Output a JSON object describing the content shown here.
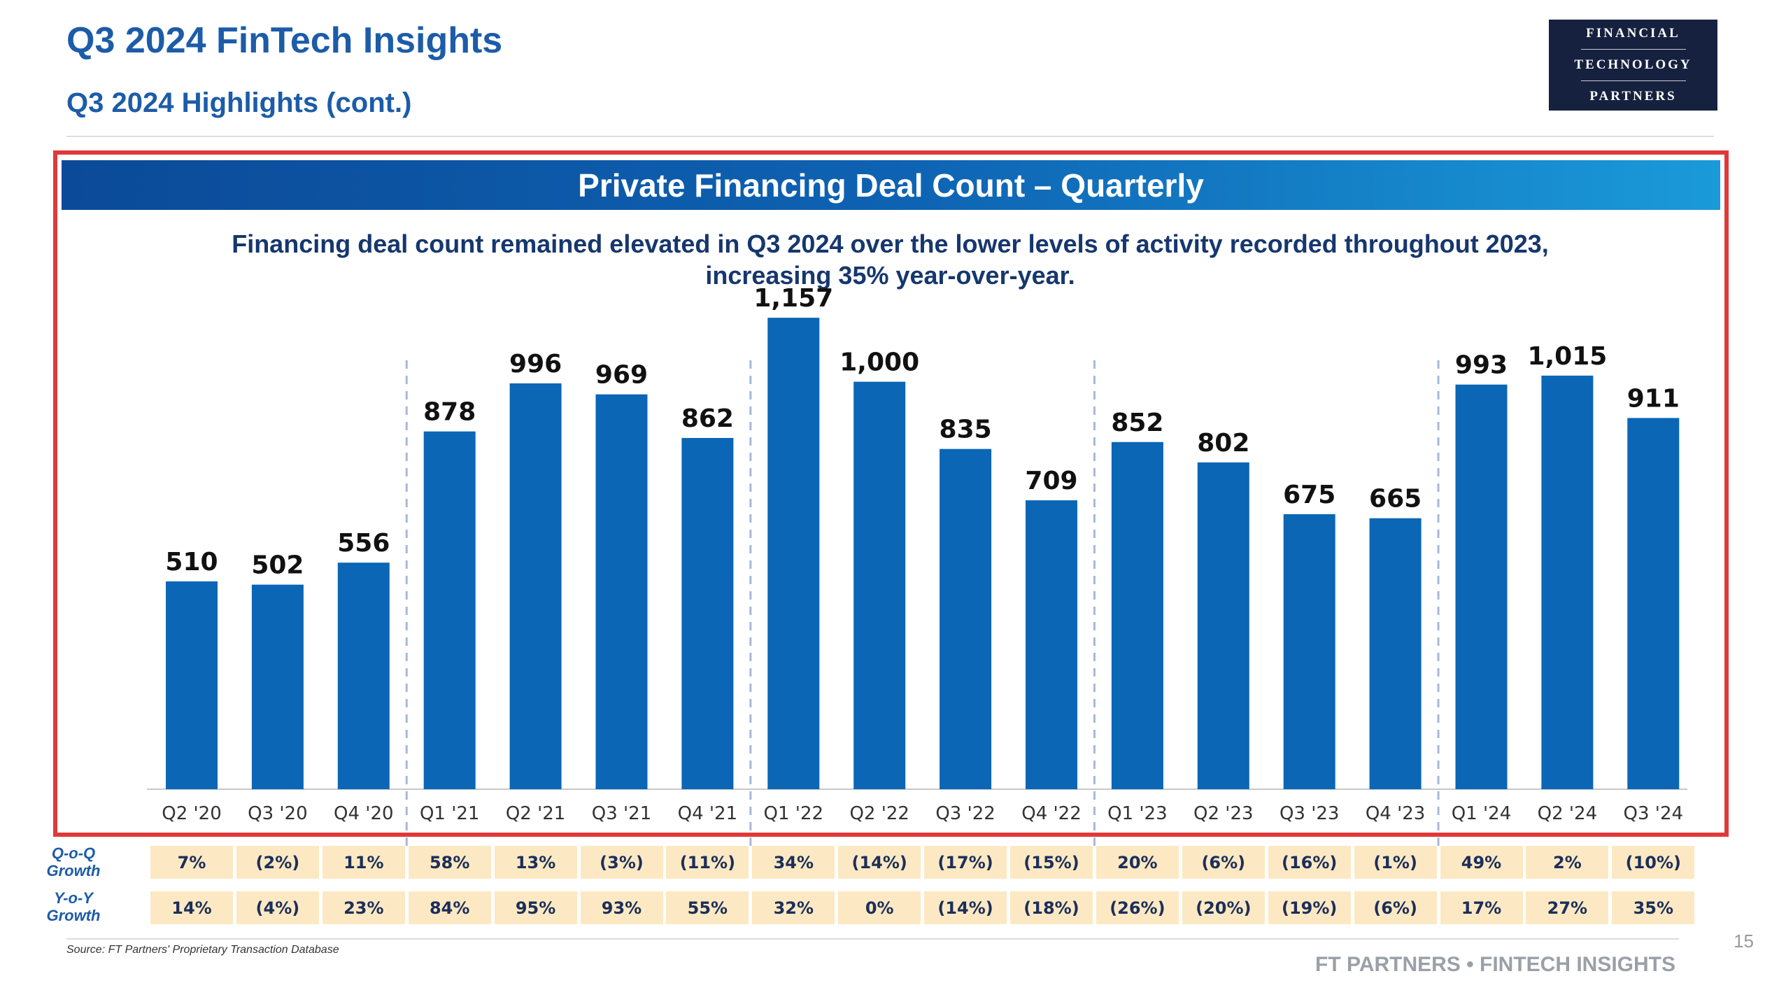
{
  "header": {
    "title": "Q3 2024 FinTech Insights",
    "subtitle": "Q3 2024 Highlights (cont.)"
  },
  "logo": {
    "line1": "FINANCIAL",
    "line2": "TECHNOLOGY",
    "line3": "PARTNERS"
  },
  "banner": {
    "title": "Private Financing Deal Count – Quarterly"
  },
  "caption": "Financing deal count remained elevated in Q3 2024 over the lower levels of activity recorded throughout 2023, increasing 35% year-over-year.",
  "chart_data": {
    "type": "bar",
    "title": "Private Financing Deal Count – Quarterly",
    "xlabel": "",
    "ylabel": "",
    "grid": false,
    "bar_color": "#0B66B5",
    "categories": [
      "Q2 '20",
      "Q3 '20",
      "Q4 '20",
      "Q1 '21",
      "Q2 '21",
      "Q3 '21",
      "Q4 '21",
      "Q1 '22",
      "Q2 '22",
      "Q3 '22",
      "Q4 '22",
      "Q1 '23",
      "Q2 '23",
      "Q3 '23",
      "Q4 '23",
      "Q1 '24",
      "Q2 '24",
      "Q3 '24"
    ],
    "values": [
      510,
      502,
      556,
      878,
      996,
      969,
      862,
      1157,
      1000,
      835,
      709,
      852,
      802,
      675,
      665,
      993,
      1015,
      911
    ],
    "data_labels": [
      "510",
      "502",
      "556",
      "878",
      "996",
      "969",
      "862",
      "1,157",
      "1,000",
      "835",
      "709",
      "852",
      "802",
      "675",
      "665",
      "993",
      "1,015",
      "911"
    ],
    "ylim": [
      0,
      1250
    ],
    "year_separators_after": [
      "Q4 '20",
      "Q4 '21",
      "Q4 '22",
      "Q4 '23"
    ]
  },
  "growth": {
    "qoq_label": "Q-o-Q Growth",
    "yoy_label": "Y-o-Y Growth",
    "qoq": [
      "7%",
      "(2%)",
      "11%",
      "58%",
      "13%",
      "(3%)",
      "(11%)",
      "34%",
      "(14%)",
      "(17%)",
      "(15%)",
      "20%",
      "(6%)",
      "(16%)",
      "(1%)",
      "49%",
      "2%",
      "(10%)"
    ],
    "yoy": [
      "14%",
      "(4%)",
      "23%",
      "84%",
      "95%",
      "93%",
      "55%",
      "32%",
      "0%",
      "(14%)",
      "(18%)",
      "(26%)",
      "(20%)",
      "(19%)",
      "(6%)",
      "17%",
      "27%",
      "35%"
    ]
  },
  "footer": {
    "source": "Source: FT Partners' Proprietary Transaction Database",
    "page_number": "15",
    "brand": "FT PARTNERS • FINTECH INSIGHTS"
  }
}
